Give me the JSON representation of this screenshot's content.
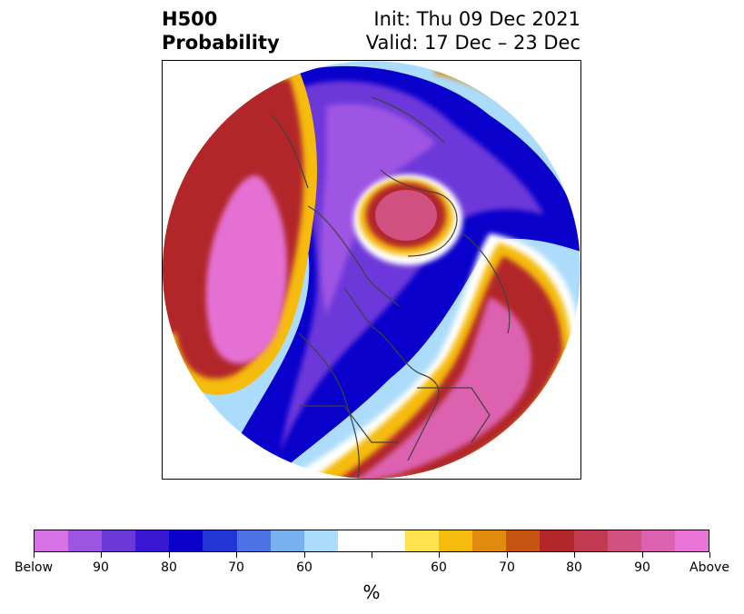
{
  "title": {
    "left_line1": "H500",
    "left_line2": "Probability",
    "right_line1": "Init: Thu 09 Dec 2021",
    "right_line2": "Valid: 17 Dec – 23 Dec"
  },
  "colorbar": {
    "colors": [
      "#d672e6",
      "#9f55e3",
      "#6d38d9",
      "#3a17d2",
      "#0a00cc",
      "#2236d6",
      "#4d72e3",
      "#78b0f0",
      "#acdcfc",
      "#ffffff",
      "#ffffff",
      "#ffe24d",
      "#f5bb0d",
      "#e08b0e",
      "#c65514",
      "#b2262a",
      "#c23a50",
      "#d05080",
      "#dc62b0",
      "#ea74d8"
    ],
    "tick_labels": [
      "Below",
      "90",
      "80",
      "70",
      "60",
      "",
      "60",
      "70",
      "80",
      "90",
      "Above"
    ],
    "units": "%"
  },
  "map": {
    "projection": "north-polar-stereographic",
    "variable": "500 hPa height anomaly probability",
    "palette": {
      "above_strong": "#e56fd3",
      "above_mid": "#d05080",
      "above_low": "#b2262a",
      "orange": "#e08b0e",
      "yellow": "#f5bb0d",
      "below_strong": "#9f55e3",
      "below_mid": "#6d38d9",
      "below_blue": "#0a00cc",
      "light_blue": "#78b0f0",
      "borders": "#404040"
    }
  }
}
